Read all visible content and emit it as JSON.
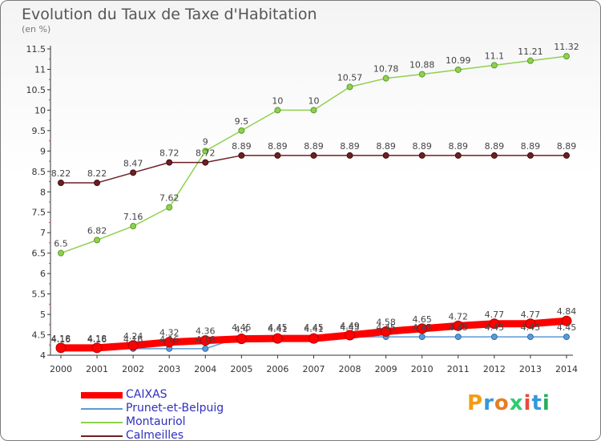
{
  "chart_data": {
    "type": "line",
    "title": "Evolution du Taux de Taxe d'Habitation",
    "subtitle": "(en %)",
    "x": [
      "2000",
      "2001",
      "2002",
      "2003",
      "2004",
      "2005",
      "2006",
      "2007",
      "2008",
      "2009",
      "2010",
      "2011",
      "2012",
      "2013",
      "2014"
    ],
    "ylim": [
      4,
      11.5
    ],
    "yticks": [
      "4",
      "4.5",
      "5",
      "5.5",
      "6",
      "6.5",
      "7",
      "7.5",
      "8",
      "8.5",
      "9",
      "9.5",
      "10",
      "10.5",
      "11",
      "11.5"
    ],
    "grid": false,
    "legend_position": "bottom-left",
    "series": [
      {
        "name": "CAIXAS",
        "color": "#ff0000",
        "values": [
          4.18,
          4.18,
          4.24,
          4.32,
          4.36,
          4.4,
          4.41,
          4.41,
          4.49,
          4.58,
          4.65,
          4.72,
          4.77,
          4.77,
          4.84
        ],
        "labels": [
          "4.18",
          "4.18",
          "4.24",
          "4.32",
          "4.36",
          "4.4",
          "4.41",
          "4.41",
          "4.49",
          "4.58",
          "4.65",
          "4.72",
          "4.77",
          "4.77",
          "4.84"
        ]
      },
      {
        "name": "Prunet-et-Belpuig",
        "color": "#5b9bd5",
        "values": [
          4.16,
          4.16,
          4.16,
          4.16,
          4.16,
          4.45,
          4.45,
          4.45,
          4.45,
          4.45,
          4.45,
          4.45,
          4.45,
          4.45,
          4.45
        ],
        "labels": [
          "4.16",
          "4.16",
          "4.16",
          "4.16",
          "4.16",
          "4.45",
          "4.45",
          "4.45",
          "4.45",
          "4.45",
          "4.45",
          "4.45",
          "4.45",
          "4.45",
          "4.45"
        ]
      },
      {
        "name": "Montauriol",
        "color": "#8fd14f",
        "values": [
          6.5,
          6.82,
          7.16,
          7.62,
          9,
          9.5,
          10,
          10,
          10.57,
          10.78,
          10.88,
          10.99,
          11.1,
          11.21,
          11.32
        ],
        "labels": [
          "6.5",
          "6.82",
          "7.16",
          "7.62",
          "9",
          "9.5",
          "10",
          "10",
          "10.57",
          "10.78",
          "10.88",
          "10.99",
          "11.1",
          "11.21",
          "11.32"
        ]
      },
      {
        "name": "Calmeilles",
        "color": "#6e1f22",
        "values": [
          8.22,
          8.22,
          8.47,
          8.72,
          8.72,
          8.89,
          8.89,
          8.89,
          8.89,
          8.89,
          8.89,
          8.89,
          8.89,
          8.89,
          8.89
        ],
        "labels": [
          "8.22",
          "8.22",
          "8.47",
          "8.72",
          "8.72",
          "8.89",
          "8.89",
          "8.89",
          "8.89",
          "8.89",
          "8.89",
          "8.89",
          "8.89",
          "8.89",
          "8.89"
        ]
      }
    ]
  },
  "logo": {
    "letters": [
      "P",
      "r",
      "o",
      "x",
      "i",
      "t",
      "i"
    ],
    "colors": [
      "#f39c12",
      "#3498db",
      "#e67e22",
      "#2ecc71",
      "#e74c3c",
      "#3498db",
      "#27ae60"
    ]
  }
}
